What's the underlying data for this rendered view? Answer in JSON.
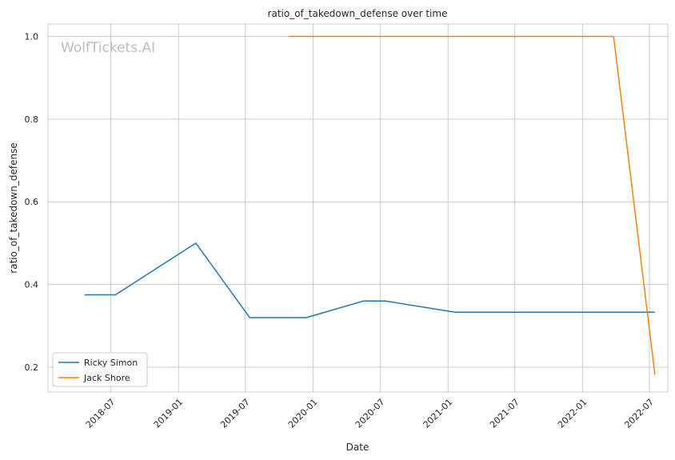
{
  "watermark": "WolfTickets.AI",
  "chart_data": {
    "type": "line",
    "title": "ratio_of_takedown_defense over time",
    "xlabel": "Date",
    "ylabel": "ratio_of_takedown_defense",
    "x_ticks": [
      "2018-07",
      "2019-01",
      "2019-07",
      "2020-01",
      "2020-07",
      "2021-01",
      "2021-07",
      "2022-01",
      "2022-07"
    ],
    "y_ticks": [
      0.2,
      0.4,
      0.6,
      0.8,
      1.0
    ],
    "y_tick_labels": [
      "0.2",
      "0.4",
      "0.6",
      "0.8",
      "1.0"
    ],
    "xlim": [
      "2018-01-12",
      "2022-08-20"
    ],
    "ylim": [
      0.14,
      1.03
    ],
    "grid": true,
    "legend_position": "lower-left",
    "series": [
      {
        "name": "Ricky Simon",
        "color": "#1f77b4",
        "points": [
          {
            "x": "2018-04-21",
            "y": 0.375
          },
          {
            "x": "2018-07-14",
            "y": 0.375
          },
          {
            "x": "2019-02-17",
            "y": 0.5
          },
          {
            "x": "2019-07-13",
            "y": 0.32
          },
          {
            "x": "2019-12-14",
            "y": 0.32
          },
          {
            "x": "2020-05-16",
            "y": 0.36
          },
          {
            "x": "2020-07-15",
            "y": 0.36
          },
          {
            "x": "2021-01-20",
            "y": 0.333
          },
          {
            "x": "2022-07-16",
            "y": 0.333
          }
        ]
      },
      {
        "name": "Jack Shore",
        "color": "#ff7f0e",
        "points": [
          {
            "x": "2019-10-26",
            "y": 1.0
          },
          {
            "x": "2022-03-26",
            "y": 1.0
          },
          {
            "x": "2022-07-16",
            "y": 0.182
          }
        ]
      }
    ]
  }
}
